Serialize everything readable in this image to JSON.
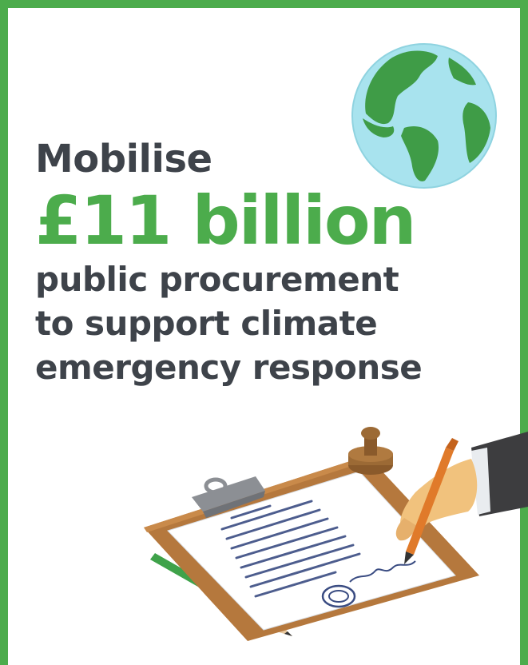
{
  "headline": {
    "line1": "Mobilise",
    "line2": "£11 billion",
    "line3": "public procurement",
    "line4": "to support climate",
    "line5": "emergency response"
  },
  "colors": {
    "brand_green": "#4cac4c",
    "text_dark": "#3e434a",
    "ocean": "#a8e3ee",
    "land": "#3f9c47",
    "clipboard": "#b5783d",
    "pen": "#e07a2a"
  },
  "icons": [
    "globe-icon",
    "clipboard-icon",
    "rubber-stamp-icon",
    "pen-icon",
    "pencil-icon",
    "hand-icon"
  ]
}
